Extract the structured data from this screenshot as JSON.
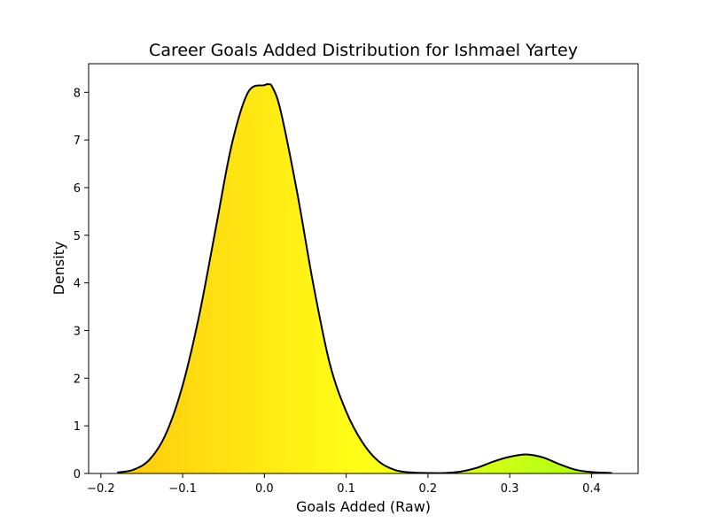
{
  "chart_data": {
    "type": "area",
    "title": "Career Goals Added Distribution for Ishmael Yartey",
    "xlabel": "Goals Added (Raw)",
    "ylabel": "Density",
    "xlim": [
      -0.215,
      0.457
    ],
    "ylim": [
      0,
      8.6
    ],
    "x_ticks": [
      -0.2,
      -0.1,
      0.0,
      0.1,
      0.2,
      0.3,
      0.4
    ],
    "x_tick_labels": [
      "−0.2",
      "−0.1",
      "0.0",
      "0.1",
      "0.2",
      "0.3",
      "0.4"
    ],
    "y_ticks": [
      0,
      1,
      2,
      3,
      4,
      5,
      6,
      7,
      8
    ],
    "y_tick_labels": [
      "0",
      "1",
      "2",
      "3",
      "4",
      "5",
      "6",
      "7",
      "8"
    ],
    "grid": false,
    "legend": "none",
    "line_color": "#000000",
    "gradient_colors": [
      "#ffc40c",
      "#ffff18",
      "#9cff14"
    ],
    "series": [
      {
        "x": [
          -0.18,
          -0.16,
          -0.14,
          -0.12,
          -0.1,
          -0.08,
          -0.06,
          -0.04,
          -0.02,
          0.0,
          0.005,
          0.01,
          0.02,
          0.04,
          0.06,
          0.08,
          0.1,
          0.12,
          0.14,
          0.16,
          0.18,
          0.2,
          0.22,
          0.24,
          0.26,
          0.28,
          0.3,
          0.32,
          0.34,
          0.36,
          0.38,
          0.4,
          0.425
        ],
        "y": [
          0.02,
          0.08,
          0.3,
          0.85,
          1.85,
          3.3,
          5.1,
          6.9,
          8.0,
          8.15,
          8.17,
          8.1,
          7.6,
          5.9,
          3.95,
          2.3,
          1.3,
          0.65,
          0.25,
          0.07,
          0.02,
          0.01,
          0.01,
          0.04,
          0.12,
          0.25,
          0.35,
          0.4,
          0.34,
          0.2,
          0.08,
          0.03,
          0.01
        ]
      }
    ]
  }
}
